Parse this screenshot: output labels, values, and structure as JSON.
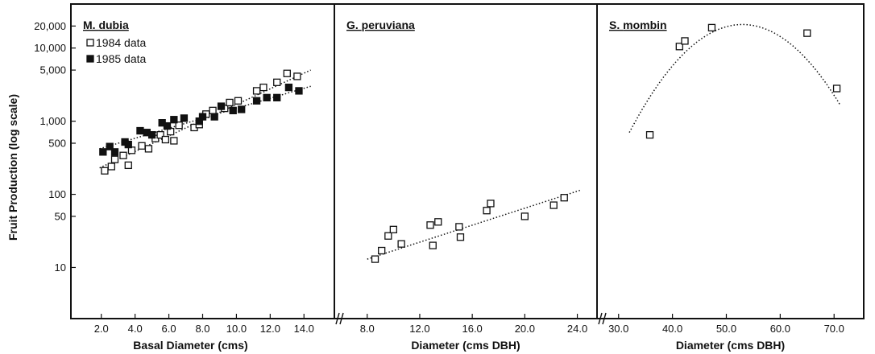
{
  "figure": {
    "y_axis_label": "Fruit Production (log scale)",
    "y_ticks": [
      {
        "value": 20000,
        "label": "20,000"
      },
      {
        "value": 10000,
        "label": "10,000"
      },
      {
        "value": 5000,
        "label": "5,000"
      },
      {
        "value": 1000,
        "label": "1,000"
      },
      {
        "value": 500,
        "label": "500"
      },
      {
        "value": 100,
        "label": "100"
      },
      {
        "value": 50,
        "label": "50"
      },
      {
        "value": 10,
        "label": "10"
      }
    ]
  },
  "chart_data": [
    {
      "type": "scatter",
      "title_prefix": "M.",
      "title_rest": "dubia",
      "xlabel": "Basal Diameter (cms)",
      "ylabel": "Fruit Production (log scale)",
      "yscale": "log",
      "ylim": [
        2,
        40000
      ],
      "xlim": [
        0.2,
        15.8
      ],
      "x_ticks": [
        2.0,
        4.0,
        6.0,
        8.0,
        10.0,
        12.0,
        14.0
      ],
      "x_tick_labels": [
        "2.0",
        "4.0",
        "6.0",
        "8.0",
        "10.0",
        "12.0",
        "14.0"
      ],
      "axis_break": false,
      "legend_position": "top-left",
      "series": [
        {
          "name": "1984 data",
          "marker": "open-square",
          "points": [
            {
              "x": 2.2,
              "y": 210
            },
            {
              "x": 2.6,
              "y": 240
            },
            {
              "x": 2.8,
              "y": 300
            },
            {
              "x": 3.3,
              "y": 340
            },
            {
              "x": 3.6,
              "y": 250
            },
            {
              "x": 3.8,
              "y": 400
            },
            {
              "x": 4.4,
              "y": 460
            },
            {
              "x": 4.8,
              "y": 420
            },
            {
              "x": 5.2,
              "y": 580
            },
            {
              "x": 5.5,
              "y": 650
            },
            {
              "x": 5.8,
              "y": 560
            },
            {
              "x": 6.1,
              "y": 720
            },
            {
              "x": 6.3,
              "y": 540
            },
            {
              "x": 6.6,
              "y": 880
            },
            {
              "x": 7.5,
              "y": 820
            },
            {
              "x": 7.8,
              "y": 900
            },
            {
              "x": 8.2,
              "y": 1250
            },
            {
              "x": 8.6,
              "y": 1400
            },
            {
              "x": 9.3,
              "y": 1500
            },
            {
              "x": 9.6,
              "y": 1800
            },
            {
              "x": 10.1,
              "y": 1900
            },
            {
              "x": 11.2,
              "y": 2600
            },
            {
              "x": 11.6,
              "y": 2900
            },
            {
              "x": 12.4,
              "y": 3400
            },
            {
              "x": 13.0,
              "y": 4500
            },
            {
              "x": 13.6,
              "y": 4100
            }
          ],
          "trend": {
            "x1": 1.9,
            "y1": 230,
            "x2": 14.4,
            "y2": 5000
          }
        },
        {
          "name": "1985 data",
          "marker": "filled-square",
          "points": [
            {
              "x": 2.1,
              "y": 380
            },
            {
              "x": 2.5,
              "y": 450
            },
            {
              "x": 2.8,
              "y": 380
            },
            {
              "x": 3.4,
              "y": 520
            },
            {
              "x": 3.6,
              "y": 480
            },
            {
              "x": 4.3,
              "y": 740
            },
            {
              "x": 4.7,
              "y": 700
            },
            {
              "x": 5.0,
              "y": 650
            },
            {
              "x": 5.6,
              "y": 950
            },
            {
              "x": 5.9,
              "y": 860
            },
            {
              "x": 6.3,
              "y": 1050
            },
            {
              "x": 6.9,
              "y": 1100
            },
            {
              "x": 7.8,
              "y": 1000
            },
            {
              "x": 8.0,
              "y": 1150
            },
            {
              "x": 8.7,
              "y": 1150
            },
            {
              "x": 9.1,
              "y": 1600
            },
            {
              "x": 9.8,
              "y": 1400
            },
            {
              "x": 10.3,
              "y": 1450
            },
            {
              "x": 11.2,
              "y": 1900
            },
            {
              "x": 11.8,
              "y": 2100
            },
            {
              "x": 12.4,
              "y": 2100
            },
            {
              "x": 13.1,
              "y": 2900
            },
            {
              "x": 13.7,
              "y": 2600
            }
          ],
          "trend": {
            "x1": 1.9,
            "y1": 420,
            "x2": 14.4,
            "y2": 3000
          }
        }
      ]
    },
    {
      "type": "scatter",
      "title_prefix": "G.",
      "title_rest": "peruviana",
      "xlabel": "Diameter (cms DBH)",
      "ylabel": "Fruit Production (log scale)",
      "yscale": "log",
      "ylim": [
        2,
        40000
      ],
      "xlim": [
        5.5,
        25.5
      ],
      "x_ticks": [
        8.0,
        12.0,
        16.0,
        20.0,
        24.0
      ],
      "x_tick_labels": [
        "8.0",
        "12.0",
        "16.0",
        "20.0",
        "24.0"
      ],
      "axis_break": true,
      "series": [
        {
          "name": "",
          "marker": "open-square",
          "points": [
            {
              "x": 8.6,
              "y": 13
            },
            {
              "x": 9.1,
              "y": 17
            },
            {
              "x": 9.6,
              "y": 27
            },
            {
              "x": 10.0,
              "y": 33
            },
            {
              "x": 10.6,
              "y": 21
            },
            {
              "x": 12.8,
              "y": 38
            },
            {
              "x": 13.0,
              "y": 20
            },
            {
              "x": 13.4,
              "y": 42
            },
            {
              "x": 15.0,
              "y": 36
            },
            {
              "x": 15.1,
              "y": 26
            },
            {
              "x": 17.1,
              "y": 60
            },
            {
              "x": 17.4,
              "y": 75
            },
            {
              "x": 20.0,
              "y": 50
            },
            {
              "x": 22.2,
              "y": 71
            },
            {
              "x": 23.0,
              "y": 90
            }
          ],
          "trend": {
            "x1": 8.0,
            "y1": 13,
            "x2": 24.3,
            "y2": 115
          }
        }
      ]
    },
    {
      "type": "scatter",
      "title_prefix": "S.",
      "title_rest": "mombin",
      "xlabel": "Diameter (cms DBH)",
      "ylabel": "Fruit Production (log scale)",
      "yscale": "log",
      "ylim": [
        2,
        40000
      ],
      "xlim": [
        26.0,
        75.5
      ],
      "x_ticks": [
        30.0,
        40.0,
        50.0,
        60.0,
        70.0
      ],
      "x_tick_labels": [
        "30.0",
        "40.0",
        "50.0",
        "60.0",
        "70.0"
      ],
      "axis_break": true,
      "series": [
        {
          "name": "",
          "marker": "open-square",
          "points": [
            {
              "x": 35.8,
              "y": 650
            },
            {
              "x": 41.3,
              "y": 10500
            },
            {
              "x": 42.3,
              "y": 12500
            },
            {
              "x": 47.3,
              "y": 19000
            },
            {
              "x": 65.0,
              "y": 16000
            },
            {
              "x": 70.5,
              "y": 2800
            }
          ],
          "curve": {
            "type": "quadratic",
            "x_from": 32.0,
            "x_to": 71.2,
            "y_at_start": 700,
            "y_at_peak": 21000,
            "x_peak": 53.0
          }
        }
      ]
    }
  ]
}
